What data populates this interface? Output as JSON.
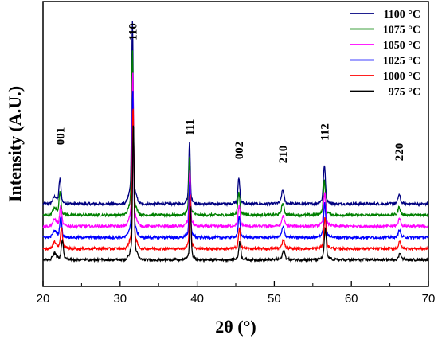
{
  "chart_data": {
    "type": "line",
    "title": "",
    "xlabel": "2θ (°)",
    "ylabel": "Intensity (A.U.)",
    "xlim": [
      20,
      70
    ],
    "x_ticks": [
      20,
      30,
      40,
      50,
      60,
      70
    ],
    "y_ticks_shown": false,
    "grid": false,
    "legend_position": "top-right",
    "peaks": [
      {
        "label": "001",
        "x": 22.2
      },
      {
        "label": "110",
        "x": 31.6
      },
      {
        "label": "111",
        "x": 39.0
      },
      {
        "label": "002",
        "x": 45.4
      },
      {
        "label": "210",
        "x": 51.1
      },
      {
        "label": "112",
        "x": 56.5
      },
      {
        "label": "220",
        "x": 66.2
      }
    ],
    "series": [
      {
        "name": "1100 °C",
        "color": "#000080",
        "baseline": 0.64,
        "shift": 0.0,
        "peak_heights": [
          0.22,
          1.6,
          0.55,
          0.22,
          0.12,
          0.34,
          0.08
        ]
      },
      {
        "name": "1075 °C",
        "color": "#008000",
        "baseline": 0.53,
        "shift": 0.0,
        "peak_heights": [
          0.2,
          1.45,
          0.5,
          0.2,
          0.1,
          0.3,
          0.07
        ]
      },
      {
        "name": "1050 °C",
        "color": "#ff00ff",
        "baseline": 0.42,
        "shift": 0.1,
        "peak_heights": [
          0.18,
          1.35,
          0.5,
          0.18,
          0.09,
          0.3,
          0.07
        ]
      },
      {
        "name": "1025 °C",
        "color": "#0000ff",
        "baseline": 0.31,
        "shift": 0.1,
        "peak_heights": [
          0.18,
          1.3,
          0.48,
          0.18,
          0.09,
          0.3,
          0.07
        ]
      },
      {
        "name": "1000 °C",
        "color": "#ff0000",
        "baseline": 0.2,
        "shift": 0.2,
        "peak_heights": [
          0.18,
          1.25,
          0.48,
          0.17,
          0.08,
          0.28,
          0.06
        ]
      },
      {
        "name": "975 °C",
        "color": "#000000",
        "baseline": 0.09,
        "shift": 0.3,
        "peak_heights": [
          0.18,
          1.2,
          0.47,
          0.16,
          0.08,
          0.27,
          0.06
        ]
      }
    ]
  }
}
